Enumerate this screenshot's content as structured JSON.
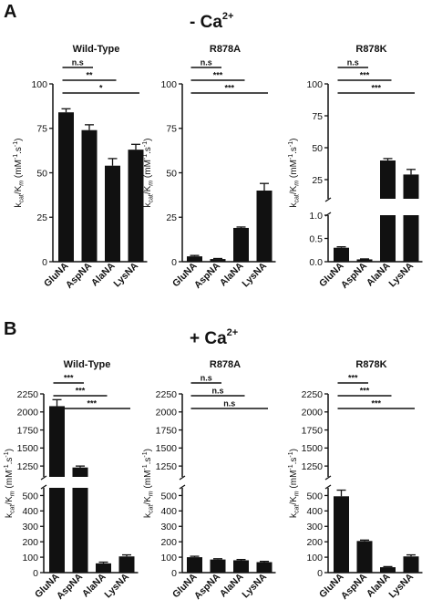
{
  "figure": {
    "sections": [
      {
        "letter": "A",
        "condition": "- Ca",
        "superscript": "2+"
      },
      {
        "letter": "B",
        "condition": "+ Ca",
        "superscript": "2+"
      }
    ],
    "ylabel": {
      "k": "k",
      "cat": "cat",
      "mid": "/K",
      "m": "m",
      "units_pre": " (mM",
      "units_sup": "-1",
      "units_mid": ".s",
      "units_sup2": "-1",
      "units_post": ")"
    }
  },
  "chart_data": [
    {
      "type": "bar",
      "section": "A",
      "title": "Wild-Type",
      "categories": [
        "GluNA",
        "AspNA",
        "AlaNA",
        "LysNA"
      ],
      "values": [
        84,
        74,
        54,
        63
      ],
      "errors": [
        2,
        3,
        4,
        3
      ],
      "ylim": [
        0,
        100
      ],
      "yticks": [
        "0",
        "25",
        "50",
        "75",
        "100"
      ],
      "significance": [
        {
          "from": "GluNA",
          "to": "AspNA",
          "label": "n.s"
        },
        {
          "from": "GluNA",
          "to": "AlaNA",
          "label": "**"
        },
        {
          "from": "GluNA",
          "to": "LysNA",
          "label": "*"
        }
      ]
    },
    {
      "type": "bar",
      "section": "A",
      "title": "R878A",
      "categories": [
        "GluNA",
        "AspNA",
        "AlaNA",
        "LysNA"
      ],
      "values": [
        3,
        1.5,
        19,
        40
      ],
      "errors": [
        0.5,
        0.3,
        0.5,
        4
      ],
      "ylim": [
        0,
        100
      ],
      "yticks": [
        "0",
        "25",
        "50",
        "75",
        "100"
      ],
      "significance": [
        {
          "from": "GluNA",
          "to": "AspNA",
          "label": "n.s"
        },
        {
          "from": "GluNA",
          "to": "AlaNA",
          "label": "***"
        },
        {
          "from": "GluNA",
          "to": "LysNA",
          "label": "***"
        }
      ]
    },
    {
      "type": "bar",
      "section": "A",
      "title": "R878K",
      "categories": [
        "GluNA",
        "AspNA",
        "AlaNA",
        "LysNA"
      ],
      "values": [
        0.3,
        0.05,
        40,
        29
      ],
      "errors": [
        0.02,
        0.01,
        1.5,
        4
      ],
      "ylim": [
        0,
        100
      ],
      "axis_break": {
        "lower": [
          0,
          1.0
        ],
        "upper": [
          10,
          100
        ]
      },
      "yticks": [
        "0.0",
        "0.5",
        "1.0",
        "25",
        "50",
        "75",
        "100"
      ],
      "significance": [
        {
          "from": "GluNA",
          "to": "AspNA",
          "label": "n.s"
        },
        {
          "from": "GluNA",
          "to": "AlaNA",
          "label": "***"
        },
        {
          "from": "GluNA",
          "to": "LysNA",
          "label": "***"
        }
      ]
    },
    {
      "type": "bar",
      "section": "B",
      "title": "Wild-Type",
      "categories": [
        "GluNA",
        "AspNA",
        "AlaNA",
        "LysNA"
      ],
      "values": [
        2080,
        1230,
        60,
        105
      ],
      "errors": [
        90,
        20,
        8,
        10
      ],
      "ylim": [
        0,
        2250
      ],
      "axis_break": {
        "lower": [
          0,
          550
        ],
        "upper": [
          1100,
          2250
        ]
      },
      "yticks": [
        "0",
        "100",
        "200",
        "300",
        "400",
        "500",
        "1250",
        "1500",
        "1750",
        "2000",
        "2250"
      ],
      "significance": [
        {
          "from": "GluNA",
          "to": "AspNA",
          "label": "***"
        },
        {
          "from": "GluNA",
          "to": "AlaNA",
          "label": "***"
        },
        {
          "from": "GluNA",
          "to": "LysNA",
          "label": "***"
        }
      ]
    },
    {
      "type": "bar",
      "section": "B",
      "title": "R878A",
      "categories": [
        "GluNA",
        "AspNA",
        "AlaNA",
        "LysNA"
      ],
      "values": [
        100,
        85,
        80,
        68
      ],
      "errors": [
        6,
        5,
        5,
        5
      ],
      "ylim": [
        0,
        2250
      ],
      "axis_break": {
        "lower": [
          0,
          550
        ],
        "upper": [
          1100,
          2250
        ]
      },
      "yticks": [
        "0",
        "100",
        "200",
        "300",
        "400",
        "500",
        "1250",
        "1500",
        "1750",
        "2000",
        "2250"
      ],
      "significance": [
        {
          "from": "GluNA",
          "to": "AspNA",
          "label": "n.s"
        },
        {
          "from": "GluNA",
          "to": "AlaNA",
          "label": "n.s"
        },
        {
          "from": "GluNA",
          "to": "LysNA",
          "label": "n.s"
        }
      ]
    },
    {
      "type": "bar",
      "section": "B",
      "title": "R878K",
      "categories": [
        "GluNA",
        "AspNA",
        "AlaNA",
        "LysNA"
      ],
      "values": [
        495,
        205,
        35,
        105
      ],
      "errors": [
        40,
        6,
        4,
        10
      ],
      "ylim": [
        0,
        2250
      ],
      "axis_break": {
        "lower": [
          0,
          550
        ],
        "upper": [
          1100,
          2250
        ]
      },
      "yticks": [
        "0",
        "100",
        "200",
        "300",
        "400",
        "500",
        "1250",
        "1500",
        "1750",
        "2000",
        "2250"
      ],
      "significance": [
        {
          "from": "GluNA",
          "to": "AspNA",
          "label": "***"
        },
        {
          "from": "GluNA",
          "to": "AlaNA",
          "label": "***"
        },
        {
          "from": "GluNA",
          "to": "LysNA",
          "label": "***"
        }
      ]
    }
  ]
}
